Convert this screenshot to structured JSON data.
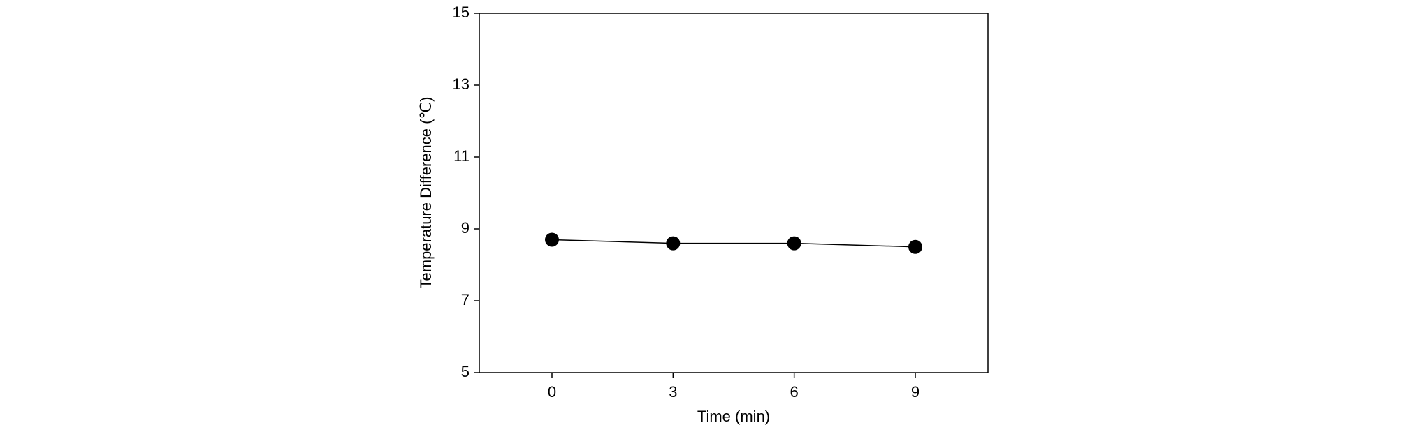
{
  "chart_data": {
    "type": "line",
    "x_label": "Time (min)",
    "y_label": "Temperature Difference (℃)",
    "x": [
      0,
      3,
      6,
      9
    ],
    "series": [
      {
        "color": "#000000",
        "values": [
          8.7,
          8.6,
          8.6,
          8.5
        ]
      }
    ],
    "xlim": [
      -1.8,
      10.8
    ],
    "xticks": [
      0,
      3,
      6,
      9
    ],
    "ylim": [
      5,
      15
    ],
    "yticks": [
      5,
      7,
      9,
      11,
      13,
      15
    ],
    "grid": false
  }
}
